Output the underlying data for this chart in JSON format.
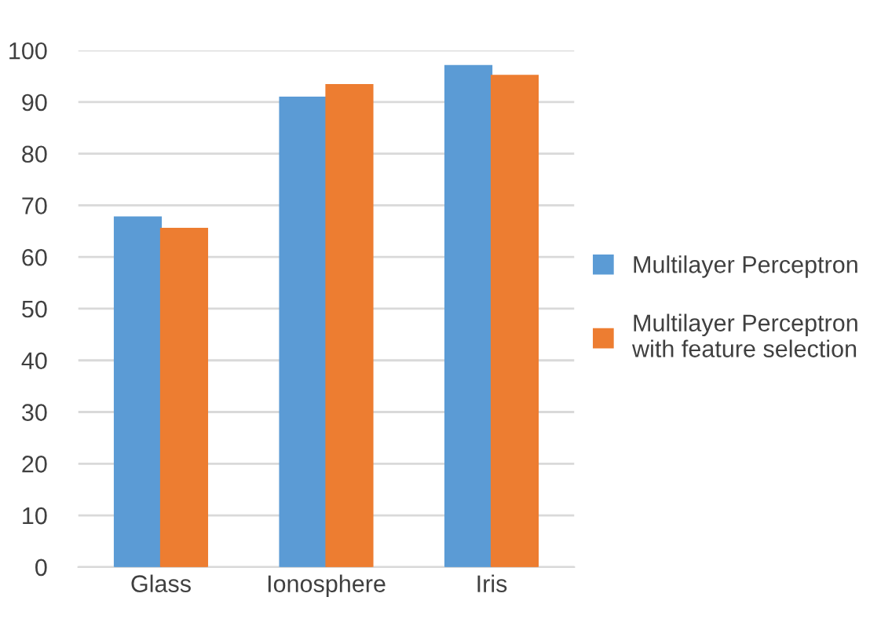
{
  "chart_data": {
    "type": "bar",
    "categories": [
      "Glass",
      "Ionosphere",
      "Iris"
    ],
    "series": [
      {
        "name": "Multilayer Perceptron",
        "color": "#5b9bd5",
        "values": [
          67.7,
          90.9,
          97.0
        ]
      },
      {
        "name": "Multilayer Perceptron with feature selection",
        "color": "#ed7d31",
        "values": [
          65.5,
          93.3,
          95.1
        ]
      }
    ],
    "ylim": [
      0,
      100
    ],
    "yticks": [
      0,
      10,
      20,
      30,
      40,
      50,
      60,
      70,
      80,
      90,
      100
    ],
    "grid": "y",
    "legend": "right"
  }
}
